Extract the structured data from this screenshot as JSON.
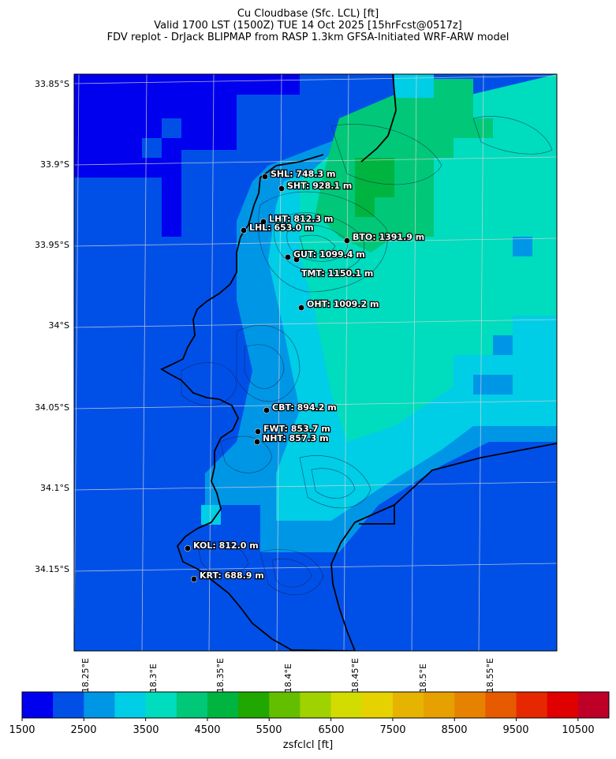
{
  "header": {
    "line1": "Cu Cloudbase (Sfc. LCL) [ft]",
    "line2": "Valid 1700 LST (1500Z) TUE 14 Oct 2025 [15hrFcst@0517z]",
    "line3": "FDV replot - DrJack BLIPMAP from RASP 1.3km GFSA-Initiated WRF-ARW model"
  },
  "axes": {
    "lat_ticks": [
      "33.85°S",
      "33.9°S",
      "33.95°S",
      "34°S",
      "34.05°S",
      "34.1°S",
      "34.15°S"
    ],
    "lon_ticks": [
      "18.25°E",
      "18.3°E",
      "18.35°E",
      "18.4°E",
      "18.45°E",
      "18.5°E",
      "18.55°E"
    ]
  },
  "stations": [
    {
      "code": "SHL",
      "label": "SHL: 748.3 m"
    },
    {
      "code": "SHT",
      "label": "SHT: 928.1 m"
    },
    {
      "code": "LHT",
      "label": "LHT: 812.3 m"
    },
    {
      "code": "LHL",
      "label": "LHL: 653.0 m"
    },
    {
      "code": "BTO",
      "label": "BTO: 1391.9 m"
    },
    {
      "code": "GUT",
      "label": "GUT: 1099.4 m"
    },
    {
      "code": "TMT",
      "label": "TMT: 1150.1 m"
    },
    {
      "code": "OHT",
      "label": "OHT: 1009.2 m"
    },
    {
      "code": "CBT",
      "label": "CBT: 894.2 m"
    },
    {
      "code": "FWT",
      "label": "FWT: 853.7 m"
    },
    {
      "code": "NHT",
      "label": "NHT: 857.3 m"
    },
    {
      "code": "KOL",
      "label": "KOL: 812.0 m"
    },
    {
      "code": "KRT",
      "label": "KRT: 688.9 m"
    }
  ],
  "colorbar": {
    "label": "zsfclcl [ft]",
    "ticks": [
      "1500",
      "2500",
      "3500",
      "4500",
      "5500",
      "6500",
      "7500",
      "8500",
      "9500",
      "10500"
    ],
    "colors": [
      "#0000ee",
      "#0050e8",
      "#0096e6",
      "#00cde6",
      "#00dcbe",
      "#00c878",
      "#00b440",
      "#20a800",
      "#64be00",
      "#a0d200",
      "#d2dc00",
      "#e6d200",
      "#e6b400",
      "#e6a000",
      "#e68200",
      "#e65a00",
      "#e62800",
      "#e00000",
      "#be0028"
    ]
  }
}
